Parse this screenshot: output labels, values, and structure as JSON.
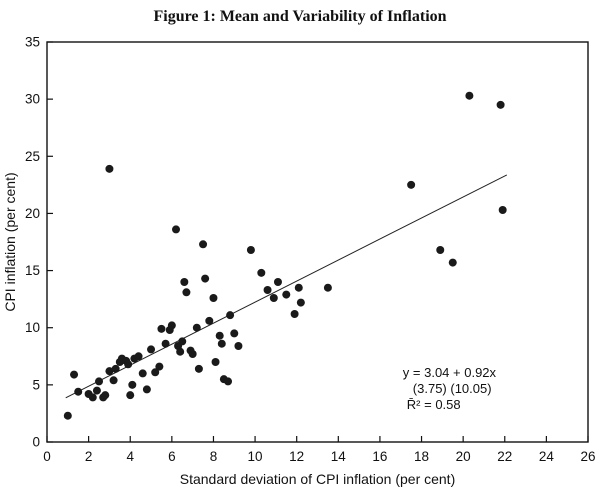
{
  "figure": {
    "title": "Figure 1: Mean and Variability of Inflation"
  },
  "chart_data": {
    "type": "scatter",
    "title": "Figure 1: Mean and Variability of Inflation",
    "xlabel": "Standard deviation of CPI inflation (per cent)",
    "ylabel": "CPI inflation (per cent)",
    "xlim": [
      0,
      26
    ],
    "ylim": [
      0,
      35
    ],
    "xticks": [
      0,
      2,
      4,
      6,
      8,
      10,
      12,
      14,
      16,
      18,
      20,
      22,
      24,
      26
    ],
    "yticks": [
      0,
      5,
      10,
      15,
      20,
      25,
      30,
      35
    ],
    "grid": false,
    "marker_color": "#1a1a1a",
    "line_color": "#222222",
    "points": [
      [
        1.0,
        2.3
      ],
      [
        1.3,
        5.9
      ],
      [
        1.5,
        4.4
      ],
      [
        2.0,
        4.2
      ],
      [
        2.2,
        3.9
      ],
      [
        2.4,
        4.5
      ],
      [
        2.5,
        5.3
      ],
      [
        2.7,
        3.9
      ],
      [
        2.8,
        4.1
      ],
      [
        3.0,
        23.9
      ],
      [
        3.0,
        6.2
      ],
      [
        3.2,
        5.4
      ],
      [
        3.3,
        6.4
      ],
      [
        3.5,
        7.0
      ],
      [
        3.6,
        7.3
      ],
      [
        3.8,
        7.1
      ],
      [
        3.9,
        6.8
      ],
      [
        4.0,
        4.1
      ],
      [
        4.1,
        5.0
      ],
      [
        4.2,
        7.3
      ],
      [
        4.4,
        7.5
      ],
      [
        4.6,
        6.0
      ],
      [
        4.8,
        4.6
      ],
      [
        5.0,
        8.1
      ],
      [
        5.2,
        6.1
      ],
      [
        5.4,
        6.6
      ],
      [
        5.5,
        9.9
      ],
      [
        5.7,
        8.6
      ],
      [
        5.9,
        9.8
      ],
      [
        6.0,
        10.2
      ],
      [
        6.2,
        18.6
      ],
      [
        6.3,
        8.4
      ],
      [
        6.4,
        7.9
      ],
      [
        6.5,
        8.8
      ],
      [
        6.6,
        14.0
      ],
      [
        6.7,
        13.1
      ],
      [
        6.9,
        8.0
      ],
      [
        7.0,
        7.7
      ],
      [
        7.2,
        10.0
      ],
      [
        7.3,
        6.4
      ],
      [
        7.5,
        17.3
      ],
      [
        7.6,
        14.3
      ],
      [
        7.8,
        10.6
      ],
      [
        8.0,
        12.6
      ],
      [
        8.1,
        7.0
      ],
      [
        8.3,
        9.3
      ],
      [
        8.4,
        8.6
      ],
      [
        8.5,
        5.5
      ],
      [
        8.7,
        5.3
      ],
      [
        8.8,
        11.1
      ],
      [
        9.0,
        9.5
      ],
      [
        9.2,
        8.4
      ],
      [
        9.8,
        16.8
      ],
      [
        10.3,
        14.8
      ],
      [
        10.6,
        13.3
      ],
      [
        10.9,
        12.6
      ],
      [
        11.1,
        14.0
      ],
      [
        11.5,
        12.9
      ],
      [
        11.9,
        11.2
      ],
      [
        12.1,
        13.5
      ],
      [
        12.2,
        12.2
      ],
      [
        13.5,
        13.5
      ],
      [
        17.5,
        22.5
      ],
      [
        18.9,
        16.8
      ],
      [
        19.5,
        15.7
      ],
      [
        20.3,
        30.3
      ],
      [
        21.8,
        29.5
      ],
      [
        21.9,
        20.3
      ]
    ],
    "regression": {
      "intercept": 3.04,
      "slope": 0.92,
      "line_x": [
        0.9,
        22.1
      ]
    },
    "annotation": {
      "x": 17.1,
      "y": 5.7,
      "line_dx": [
        0,
        10,
        4
      ],
      "lines": [
        "y = 3.04 + 0.92x",
        "(3.75)  (10.05)",
        "R̄² = 0.58"
      ]
    }
  }
}
